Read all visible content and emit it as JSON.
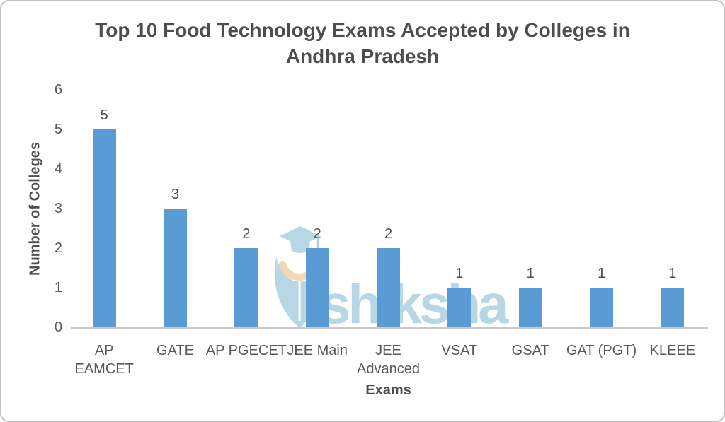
{
  "card": {
    "background": "#ffffff",
    "border_color": "#c2c2c2"
  },
  "title": {
    "line1": "Top 10 Food Technology Exams Accepted by Colleges in",
    "line2": "Andhra Pradesh",
    "color": "#4d4d4d"
  },
  "watermark": {
    "text": "shiksha",
    "logo": "shiksha-graduation-cap-pen-nib",
    "color": "#b7d7e5",
    "accent_color": "#f2d8b0"
  },
  "chart_data": {
    "type": "bar",
    "title": "Top 10 Food Technology Exams Accepted by Colleges in Andhra Pradesh",
    "categories": [
      "AP EAMCET",
      "GATE",
      "AP PGECET",
      "JEE Main",
      "JEE Advanced",
      "VSAT",
      "GSAT",
      "GAT (PGT)",
      "KLEEE"
    ],
    "category_display": [
      "AP\nEAMCET",
      "GATE",
      "AP PGECET",
      "JEE Main",
      "JEE\nAdvanced",
      "VSAT",
      "GSAT",
      "GAT (PGT)",
      "KLEEE"
    ],
    "values": [
      5,
      3,
      2,
      2,
      2,
      1,
      1,
      1,
      1
    ],
    "data_labels": [
      5,
      3,
      2,
      2,
      2,
      1,
      1,
      1,
      1
    ],
    "xlabel": "Exams",
    "ylabel": "Number of Colleges",
    "yticks": [
      0,
      1,
      2,
      3,
      4,
      5,
      6
    ],
    "ylim": [
      0,
      6
    ],
    "bar_color": "#5b9bd5",
    "label_color": "#595959",
    "axis_line_color": "#c9c9c9",
    "grid": false,
    "legend": false
  }
}
